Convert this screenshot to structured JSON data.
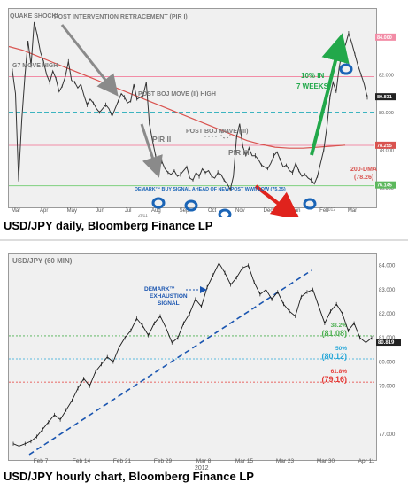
{
  "daily": {
    "caption": "USD/JPY daily, Bloomberg Finance LP",
    "colors": {
      "price": "#333333",
      "ma200": "#d9534f",
      "pivot_blue": "#00a0b0",
      "green_line": "#7fd17f",
      "pink_line": "#f28ca6",
      "arrow_gray": "#8a8a8a",
      "arrow_green": "#22a84a",
      "arrow_red": "#e0231d",
      "circle": "#1a64b6",
      "annot": "#7a7a7a"
    },
    "chart_data": {
      "type": "line",
      "x_ticks": [
        "Mar",
        "Apr",
        "May",
        "Jun",
        "Jul",
        "Aug",
        "Sep",
        "Oct",
        "Nov",
        "Dec",
        "Jan",
        "Feb",
        "Mar"
      ],
      "year_labels": [
        "2011",
        "2012"
      ],
      "y_ticks": [
        "84.000",
        "82.000",
        "80.831",
        "80.000",
        "78.000",
        "76.000"
      ],
      "series": [
        {
          "values": [
            82.2,
            81.0,
            76.4,
            79.6,
            81.9,
            83.8,
            82.5,
            84.8,
            84.1,
            83.2,
            82.7,
            82.0,
            81.6,
            82.2,
            81.8,
            81.1,
            81.4,
            81.9,
            82.7,
            81.7,
            81.6,
            81.3,
            81.5,
            80.9,
            80.4,
            80.7,
            80.5,
            80.2,
            80.0,
            80.2,
            80.4,
            80.2,
            79.8,
            80.2,
            80.6,
            81.0,
            80.8,
            80.5,
            80.6,
            81.5,
            80.7,
            80.8,
            80.9,
            81.6,
            79.4,
            78.5,
            77.7,
            77.0,
            77.4,
            77.0,
            76.8,
            76.7,
            76.9,
            76.6,
            76.7,
            76.9,
            77.1,
            76.5,
            76.4,
            76.8,
            76.6,
            77.0,
            76.8,
            76.9,
            76.6,
            76.5,
            76.8,
            76.7,
            76.4,
            76.2,
            75.9,
            76.6,
            78.7,
            79.4,
            78.2,
            77.7,
            78.1,
            77.7,
            77.7,
            77.5,
            77.2,
            77.1,
            77.0,
            77.3,
            77.7,
            77.9,
            77.5,
            77.1,
            77.2,
            76.9,
            76.8,
            77.3,
            76.9,
            76.6,
            76.7,
            76.5,
            76.4,
            76.2,
            76.6,
            77.3,
            78.0,
            79.2,
            80.8,
            81.6,
            81.1,
            82.4,
            83.3,
            83.6,
            84.2,
            83.7,
            83.1,
            82.5,
            82.0,
            81.5,
            80.8
          ]
        },
        {
          "name": "200-DMA",
          "values": [
            83.5,
            83.3,
            83.0,
            82.7,
            82.4,
            82.1,
            81.8,
            81.5,
            81.2,
            80.9,
            80.6,
            80.3,
            80.0,
            79.7,
            79.4,
            79.1,
            78.8,
            78.5,
            78.3,
            78.15,
            78.1,
            78.1,
            78.15,
            78.2,
            78.26
          ]
        }
      ],
      "levels": [
        {
          "value": 81.9,
          "color": "pink"
        },
        {
          "value": 80.0,
          "color": "blue-dashed"
        },
        {
          "value": 78.25,
          "color": "pink"
        },
        {
          "value": 76.1,
          "color": "green"
        }
      ],
      "right_badges": [
        "84.000",
        "80.831",
        "78.255",
        "76.145"
      ]
    },
    "annotations": {
      "quake": "QUAKE SHOCK!",
      "g7": "G7 MOVE HIGH",
      "post_intervention": "POST INTERVENTION RETRACEMENT (PIR I)",
      "boj_high": "POST BOJ MOVE (II) HIGH",
      "pir2": "PIR II",
      "boj3": "POST BOJ MOVE (III)",
      "pir3": "PIR III",
      "pct": "10% IN",
      "weeks": "7 WEEKS",
      "dma": "200-DMA",
      "dma_val": "(78.26)",
      "demark": "DEMARK™ BUY SIGNAL AHEAD OF NEW POST WWII LOW (75.35)"
    }
  },
  "hourly": {
    "caption": "USD/JPY hourly chart, Bloomberg Finance LP",
    "title": "USD/JPY (60 MIN)",
    "colors": {
      "price": "#1a1a1a",
      "trend": "#1a55b0",
      "fib38": "#4caf50",
      "fib50": "#2aa8d8",
      "fib618": "#e53935",
      "badge": "#222222"
    },
    "chart_data": {
      "type": "line",
      "x_ticks": [
        "Feb 7",
        "Feb 14",
        "Feb 21",
        "Feb 29",
        "Mar 8",
        "Mar 15",
        "Mar 23",
        "Mar 30",
        "Apr 11"
      ],
      "year_label": "2012",
      "y_ticks": [
        "84.000",
        "83.000",
        "82.000",
        "81.000",
        "80.000",
        "79.000",
        "77.000"
      ],
      "values": [
        76.6,
        76.5,
        76.6,
        76.7,
        76.9,
        77.2,
        77.5,
        77.8,
        77.6,
        78.0,
        78.4,
        78.9,
        79.3,
        79.0,
        79.6,
        79.9,
        80.2,
        80.0,
        80.6,
        81.0,
        81.3,
        81.8,
        81.5,
        81.1,
        81.6,
        81.9,
        81.4,
        80.8,
        81.0,
        81.6,
        82.0,
        82.6,
        82.3,
        83.1,
        83.6,
        84.1,
        83.7,
        83.2,
        83.5,
        83.9,
        84.0,
        83.3,
        82.8,
        83.0,
        82.6,
        82.9,
        82.4,
        82.1,
        81.9,
        82.7,
        82.9,
        83.0,
        82.3,
        81.6,
        82.1,
        82.4,
        82.0,
        81.3,
        81.6,
        81.0,
        80.8,
        81.0
      ],
      "levels": [
        {
          "name": "38.2%",
          "value": 81.08,
          "label": "(81.08)"
        },
        {
          "name": "50%",
          "value": 80.12,
          "label": "(80.12)"
        },
        {
          "name": "61.8%",
          "value": 79.16,
          "label": "(79.16)"
        }
      ],
      "right_badge": "80.819",
      "annotation": "DEMARK™ EXHAUSTION SIGNAL"
    }
  }
}
